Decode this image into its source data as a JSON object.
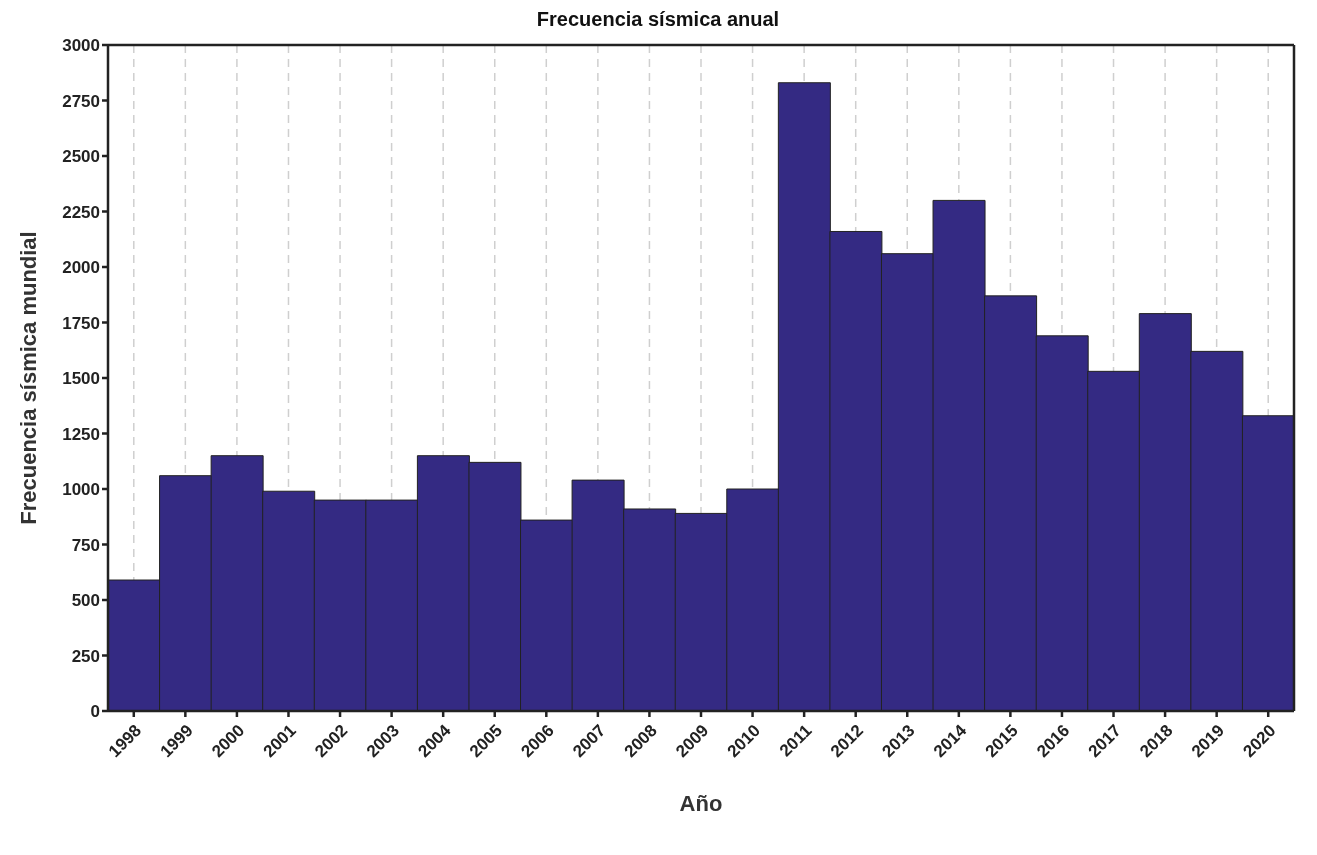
{
  "chart_data": {
    "type": "bar",
    "title": "Frecuencia sísmica anual",
    "xlabel": "Año",
    "ylabel": "Frecuencia sísmica mundial",
    "categories": [
      "1998",
      "1999",
      "2000",
      "2001",
      "2002",
      "2003",
      "2004",
      "2005",
      "2006",
      "2007",
      "2008",
      "2009",
      "2010",
      "2011",
      "2012",
      "2013",
      "2014",
      "2015",
      "2016",
      "2017",
      "2018",
      "2019",
      "2020"
    ],
    "values": [
      590,
      1060,
      1150,
      990,
      950,
      950,
      1150,
      1120,
      860,
      1040,
      910,
      890,
      1000,
      2830,
      2160,
      2060,
      2300,
      1870,
      1690,
      1530,
      1790,
      1620,
      1330
    ],
    "color": "#342a83",
    "ylim": [
      0,
      3000
    ],
    "yticks": [
      0,
      250,
      500,
      750,
      1000,
      1250,
      1500,
      1750,
      2000,
      2250,
      2500,
      2750,
      3000
    ],
    "grid": true
  }
}
